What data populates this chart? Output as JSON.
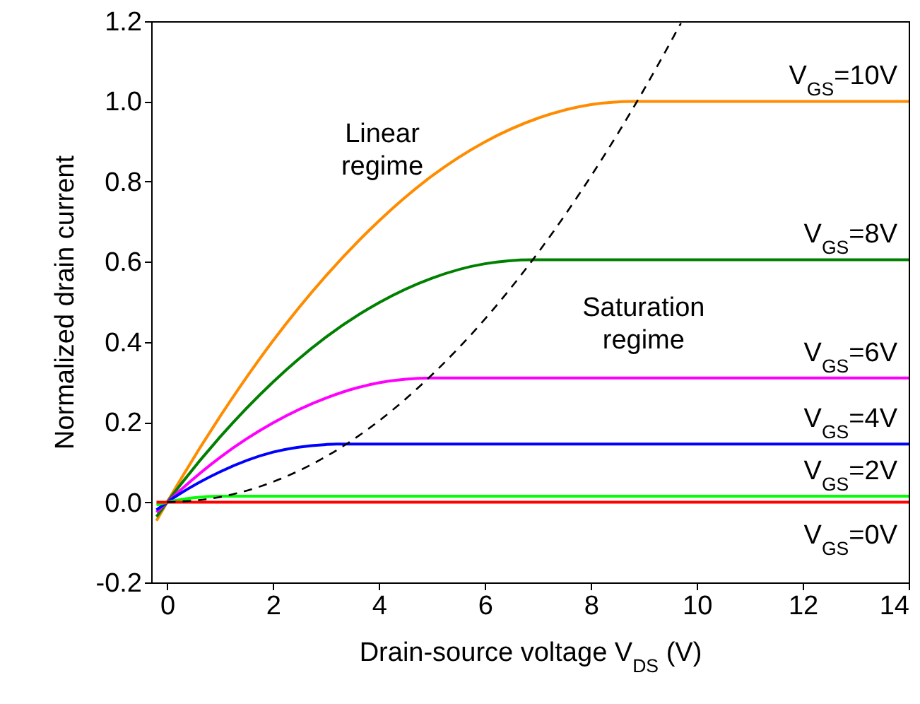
{
  "chart_data": {
    "type": "line",
    "xlabel": "Drain-source voltage V$_{DS}$ (V)",
    "ylabel": "Normalized drain current",
    "xlim": [
      -0.3,
      14
    ],
    "ylim": [
      -0.2,
      1.2
    ],
    "xticks": [
      0,
      2,
      4,
      6,
      8,
      10,
      12,
      14
    ],
    "yticks": [
      -0.2,
      {
        "value": 0,
        "label": "0.0"
      },
      0.2,
      0.4,
      0.6,
      0.8,
      {
        "value": 1,
        "label": "1.0"
      },
      1.2
    ],
    "grid": false,
    "marker": "none",
    "line_style": "solid",
    "annotations": [
      "Linear regime",
      "Saturation regime"
    ],
    "series": [
      {
        "name": "V$_{GS}$=10V",
        "color": "#ff8c00",
        "x": [
          -0.2,
          0,
          1,
          2,
          3,
          4,
          5,
          6,
          7,
          8,
          8.8,
          14
        ],
        "values": [
          -0.046,
          0,
          0.214,
          0.403,
          0.565,
          0.702,
          0.814,
          0.899,
          0.958,
          0.992,
          1.0,
          1.0
        ]
      },
      {
        "name": "V$_{GS}$=8V",
        "color": "#008000",
        "x": [
          -0.2,
          0,
          1,
          2,
          3,
          4,
          5,
          6,
          6.9,
          14
        ],
        "values": [
          -0.036,
          0,
          0.163,
          0.3,
          0.412,
          0.498,
          0.559,
          0.595,
          0.605,
          0.605
        ]
      },
      {
        "name": "V$_{GS}$=6V",
        "color": "#ff00ff",
        "x": [
          -0.2,
          0,
          1,
          2,
          3,
          4,
          5,
          14
        ],
        "values": [
          -0.025,
          0,
          0.112,
          0.198,
          0.26,
          0.298,
          0.31,
          0.31
        ]
      },
      {
        "name": "V$_{GS}$=4V",
        "color": "#0000ff",
        "x": [
          -0.2,
          0,
          1,
          2,
          3,
          3.2,
          14
        ],
        "values": [
          -0.019,
          0,
          0.076,
          0.125,
          0.144,
          0.145,
          0.145
        ]
      },
      {
        "name": "V$_{GS}$=2V",
        "color": "#00ff00",
        "x": [
          -0.2,
          0,
          0.5,
          1,
          14
        ],
        "values": [
          -0.007,
          0,
          0.011,
          0.015,
          0.015
        ]
      },
      {
        "name": "V$_{GS}$=0V",
        "color": "#ff0000",
        "x": [
          -0.2,
          14
        ],
        "values": [
          0,
          0
        ]
      },
      {
        "color": "#000000",
        "line_style": "dashed",
        "x": [
          0,
          1,
          2,
          3,
          4,
          5,
          6,
          7,
          8,
          9,
          9.7
        ],
        "values": [
          0,
          0.013,
          0.051,
          0.114,
          0.203,
          0.318,
          0.457,
          0.622,
          0.813,
          1.029,
          1.195
        ]
      }
    ]
  }
}
